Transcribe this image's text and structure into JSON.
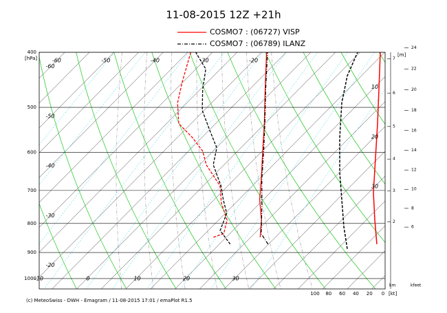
{
  "chart_data": {
    "type": "skewt",
    "title": "11-08-2015  12Z +21h",
    "footer": "(c) MeteoSwiss - DWH - Emagram / 11-08-2015  17:01 / emaPlot R1.5",
    "y_unit_label": "[hPa]",
    "ylim": [
      400,
      1043
    ],
    "yticks": [
      400,
      500,
      600,
      700,
      800,
      900,
      1000
    ],
    "log_y": true,
    "xlim": [
      -19.7,
      50.6
    ],
    "xticks": [
      -10,
      0,
      10,
      20,
      30
    ],
    "isotherm_labels_top": [
      -60,
      -50,
      -40,
      -30,
      -20
    ],
    "isotherm_labels_left": [
      -60,
      -50,
      -40,
      -30,
      -20
    ],
    "isotherm_labels_right": [
      10,
      20,
      30
    ],
    "speed_lim": [
      100,
      0
    ],
    "speed_ticks": [
      100,
      80,
      60,
      40,
      20,
      0
    ],
    "speed_unit_label": "[kt]",
    "height_unit_label": "[m]",
    "km_label": "km",
    "kfeet_label": "kfeet",
    "km_ticks": [
      2,
      3,
      4,
      5,
      6,
      7
    ],
    "kfeet_ticks": [
      6,
      8,
      10,
      12,
      14,
      16,
      18,
      20,
      22,
      24
    ],
    "series": [
      {
        "name": "COSMO7 : (06727)  VISP",
        "color": "#ff0000",
        "temp_p": [
          846,
          789,
          726,
          668,
          597,
          534,
          465,
          400
        ],
        "temp": [
          16.9,
          13.7,
          9.2,
          5.4,
          0.1,
          -5.1,
          -11.8,
          -19.0
        ],
        "dew_p": [
          846,
          834,
          789,
          736,
          687,
          631,
          597,
          565,
          534,
          491,
          452,
          400
        ],
        "dew": [
          7.4,
          8.8,
          6.7,
          2.1,
          -1.6,
          -8.6,
          -12.1,
          -16.9,
          -22.5,
          -26.9,
          -30.1,
          -34.4
        ],
        "wind_p": [
          870,
          789,
          706,
          614,
          534,
          465,
          400
        ],
        "wind": [
          9.1,
          12.1,
          14.1,
          11.1,
          8.1,
          6.1,
          4.0
        ]
      },
      {
        "name": "COSMO7 : (06789)  ILANZ",
        "color": "#000000",
        "temp_p": [
          870,
          834,
          746,
          668,
          597,
          534,
          465,
          400
        ],
        "temp": [
          19.9,
          16.4,
          11.0,
          5.5,
          0.3,
          -5.0,
          -11.7,
          -18.8
        ],
        "dew_p": [
          870,
          823,
          768,
          726,
          687,
          631,
          589,
          549,
          506,
          465,
          428,
          400
        ],
        "dew": [
          12.2,
          7.4,
          5.3,
          1.8,
          -1.4,
          -7.2,
          -9.9,
          -14.8,
          -20.4,
          -24.5,
          -28.0,
          -33.4
        ],
        "wind_p": [
          887,
          811,
          726,
          650,
          565,
          491,
          440,
          400
        ],
        "wind": [
          52.5,
          57.6,
          60.6,
          63.6,
          63.6,
          60.6,
          52.5,
          37.4
        ]
      }
    ]
  }
}
